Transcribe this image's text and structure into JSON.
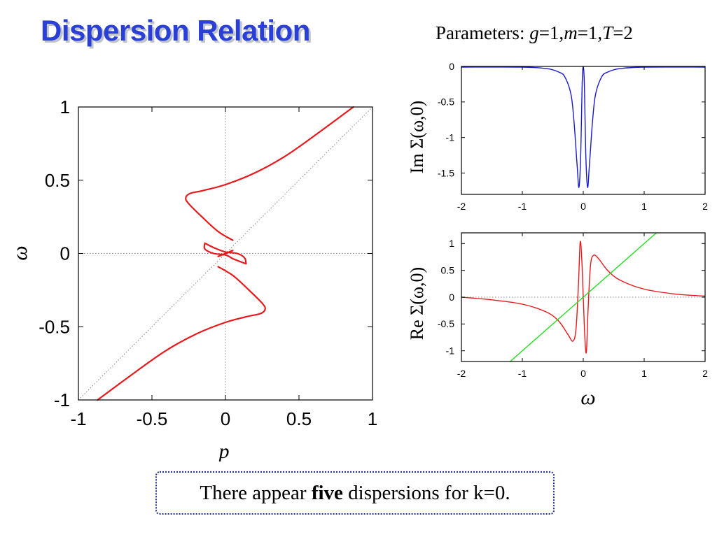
{
  "slide": {
    "title": "Dispersion Relation",
    "params_prefix": "Parameters: ",
    "params": [
      {
        "sym": "g",
        "val": "=1,"
      },
      {
        "sym": "m",
        "val": "=1,"
      },
      {
        "sym": "T",
        "val": "=2"
      }
    ],
    "note": {
      "pre": "There appear ",
      "bold": "five",
      "post": " dispersions for k=0."
    }
  },
  "colors": {
    "title": "#2a3fd6",
    "curve_red": "#e8191c",
    "curve_blue": "#1a1acc",
    "line_green": "#22dd22",
    "note_border": "#1c2f94"
  },
  "chart_data": [
    {
      "id": "dispersion",
      "type": "line",
      "xlabel": "p",
      "ylabel": "ω",
      "xlim": [
        -1,
        1
      ],
      "ylim": [
        -1,
        1
      ],
      "xticks": [
        "-1",
        "-0.5",
        "0",
        "0.5",
        "1"
      ],
      "yticks": [
        "1",
        "0.5",
        "0",
        "-0.5",
        "-1"
      ],
      "reference_lines": [
        "ω = p (dotted)",
        "p = 0 (dotted)",
        "ω = 0 (dotted)"
      ],
      "series": [
        {
          "color": "#e8191c",
          "points": [
            [
              0.87,
              1.0
            ],
            [
              0.6,
              0.8
            ],
            [
              0.4,
              0.66
            ],
            [
              0.2,
              0.55
            ],
            [
              0.0,
              0.47
            ],
            [
              -0.15,
              0.43
            ],
            [
              -0.24,
              0.41
            ],
            [
              -0.27,
              0.38
            ],
            [
              -0.25,
              0.34
            ],
            [
              -0.16,
              0.25
            ],
            [
              -0.05,
              0.15
            ],
            [
              0.05,
              0.09
            ]
          ]
        },
        {
          "color": "#e8191c",
          "points": [
            [
              -0.05,
              -0.02
            ],
            [
              0.0,
              0.0
            ],
            [
              0.05,
              0.02
            ]
          ]
        },
        {
          "color": "#e8191c",
          "points": [
            [
              -0.14,
              0.07
            ],
            [
              -0.08,
              0.04
            ],
            [
              0.0,
              0.01
            ],
            [
              0.08,
              0.0
            ],
            [
              0.13,
              -0.03
            ],
            [
              0.14,
              -0.07
            ]
          ]
        },
        {
          "color": "#e8191c",
          "points": [
            [
              0.14,
              -0.07
            ],
            [
              0.06,
              -0.04
            ],
            [
              0.0,
              -0.01
            ],
            [
              -0.08,
              0.0
            ],
            [
              -0.14,
              0.03
            ],
            [
              -0.14,
              0.07
            ]
          ]
        },
        {
          "color": "#e8191c",
          "points": [
            [
              -0.05,
              -0.09
            ],
            [
              0.05,
              -0.15
            ],
            [
              0.16,
              -0.25
            ],
            [
              0.25,
              -0.34
            ],
            [
              0.27,
              -0.38
            ],
            [
              0.24,
              -0.41
            ],
            [
              0.15,
              -0.43
            ],
            [
              0.0,
              -0.47
            ],
            [
              -0.2,
              -0.55
            ],
            [
              -0.4,
              -0.66
            ],
            [
              -0.6,
              -0.8
            ],
            [
              -0.87,
              -1.0
            ]
          ]
        }
      ]
    },
    {
      "id": "im_sigma",
      "type": "line",
      "ylabel": "Im Σ(ω,0)",
      "xlim": [
        -2,
        2
      ],
      "ylim": [
        -1.8,
        0
      ],
      "xticks": [
        "-2",
        "-1",
        "0",
        "1",
        "2"
      ],
      "yticks": [
        "0",
        "-0.5",
        "-1",
        "-1.5"
      ],
      "series": [
        {
          "color": "#1a1acc",
          "points": [
            [
              -2.0,
              -0.01
            ],
            [
              -1.0,
              -0.01
            ],
            [
              -0.6,
              -0.03
            ],
            [
              -0.4,
              -0.08
            ],
            [
              -0.3,
              -0.15
            ],
            [
              -0.2,
              -0.4
            ],
            [
              -0.15,
              -0.8
            ],
            [
              -0.1,
              -1.4
            ],
            [
              -0.07,
              -1.7
            ],
            [
              -0.04,
              -1.2
            ],
            [
              -0.02,
              -0.3
            ],
            [
              0.0,
              0.0
            ],
            [
              0.02,
              -0.3
            ],
            [
              0.04,
              -1.2
            ],
            [
              0.07,
              -1.7
            ],
            [
              0.1,
              -1.4
            ],
            [
              0.15,
              -0.8
            ],
            [
              0.2,
              -0.4
            ],
            [
              0.3,
              -0.15
            ],
            [
              0.4,
              -0.08
            ],
            [
              0.6,
              -0.03
            ],
            [
              1.0,
              -0.01
            ],
            [
              2.0,
              -0.01
            ]
          ]
        }
      ]
    },
    {
      "id": "re_sigma",
      "type": "line",
      "ylabel": "Re Σ(ω,0)",
      "xlabel": "ω",
      "xlim": [
        -2,
        2
      ],
      "ylim": [
        -1.2,
        1.2
      ],
      "xticks": [
        "-2",
        "-1",
        "0",
        "1",
        "2"
      ],
      "yticks": [
        "1",
        "0.5",
        "0",
        "-0.5",
        "-1"
      ],
      "series": [
        {
          "color": "#e8191c",
          "points": [
            [
              -2.0,
              0.0
            ],
            [
              -1.5,
              -0.05
            ],
            [
              -1.0,
              -0.13
            ],
            [
              -0.6,
              -0.28
            ],
            [
              -0.4,
              -0.45
            ],
            [
              -0.25,
              -0.7
            ],
            [
              -0.17,
              -0.82
            ],
            [
              -0.12,
              -0.6
            ],
            [
              -0.08,
              0.2
            ],
            [
              -0.05,
              1.03
            ],
            [
              -0.02,
              0.6
            ],
            [
              0.02,
              -0.6
            ],
            [
              0.05,
              -1.03
            ],
            [
              0.08,
              -0.2
            ],
            [
              0.12,
              0.6
            ],
            [
              0.17,
              0.78
            ],
            [
              0.25,
              0.72
            ],
            [
              0.4,
              0.5
            ],
            [
              0.6,
              0.32
            ],
            [
              1.0,
              0.15
            ],
            [
              1.5,
              0.06
            ],
            [
              2.0,
              0.02
            ]
          ]
        },
        {
          "color": "#22dd22",
          "points": [
            [
              -1.2,
              -1.2
            ],
            [
              1.2,
              1.2
            ]
          ]
        }
      ]
    }
  ]
}
